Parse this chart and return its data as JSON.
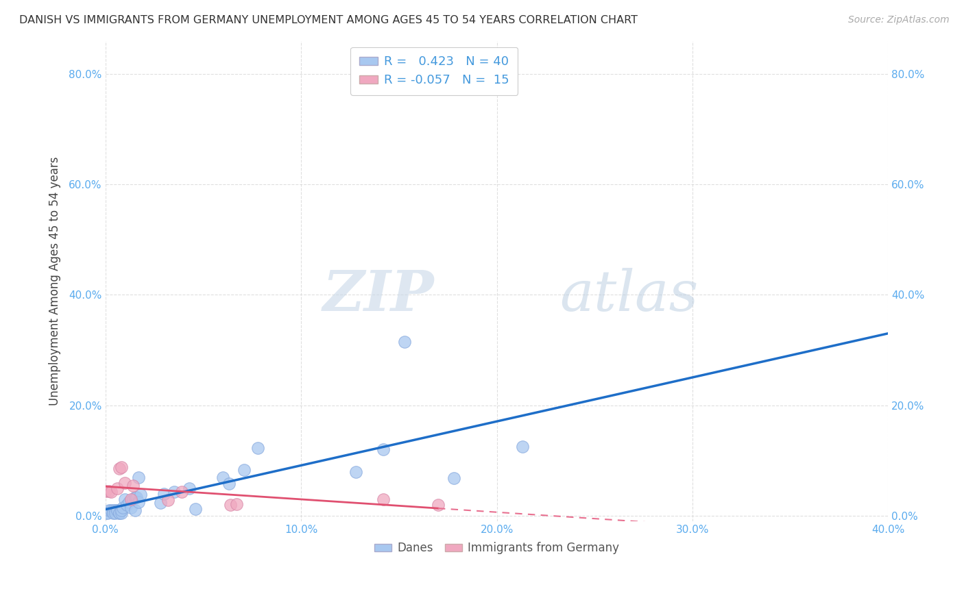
{
  "title": "DANISH VS IMMIGRANTS FROM GERMANY UNEMPLOYMENT AMONG AGES 45 TO 54 YEARS CORRELATION CHART",
  "source": "Source: ZipAtlas.com",
  "ylabel": "Unemployment Among Ages 45 to 54 years",
  "xlim": [
    0.0,
    0.4
  ],
  "ylim": [
    -0.01,
    0.86
  ],
  "xticks": [
    0.0,
    0.1,
    0.2,
    0.3,
    0.4
  ],
  "yticks": [
    0.0,
    0.2,
    0.4,
    0.6,
    0.8
  ],
  "xtick_labels": [
    "0.0%",
    "10.0%",
    "20.0%",
    "30.0%",
    "40.0%"
  ],
  "ytick_labels": [
    "0.0%",
    "20.0%",
    "40.0%",
    "60.0%",
    "80.0%"
  ],
  "danes_color": "#A8C8F0",
  "immigrants_color": "#F0A8C0",
  "danes_R": 0.423,
  "danes_N": 40,
  "immigrants_R": -0.057,
  "immigrants_N": 15,
  "danes_x": [
    0.0,
    0.001,
    0.002,
    0.003,
    0.004,
    0.004,
    0.005,
    0.005,
    0.006,
    0.006,
    0.007,
    0.007,
    0.008,
    0.008,
    0.009,
    0.01,
    0.011,
    0.012,
    0.013,
    0.014,
    0.015,
    0.015,
    0.016,
    0.017,
    0.017,
    0.018,
    0.028,
    0.03,
    0.035,
    0.043,
    0.046,
    0.06,
    0.063,
    0.071,
    0.078,
    0.128,
    0.142,
    0.153,
    0.178,
    0.213
  ],
  "danes_y": [
    0.005,
    0.005,
    0.01,
    0.01,
    0.01,
    0.005,
    0.01,
    0.005,
    0.01,
    0.01,
    0.005,
    0.005,
    0.005,
    0.01,
    0.015,
    0.03,
    0.02,
    0.025,
    0.015,
    0.03,
    0.033,
    0.01,
    0.033,
    0.07,
    0.025,
    0.038,
    0.023,
    0.04,
    0.043,
    0.05,
    0.013,
    0.07,
    0.058,
    0.083,
    0.123,
    0.08,
    0.12,
    0.315,
    0.068,
    0.125
  ],
  "immigrants_x": [
    0.0,
    0.002,
    0.003,
    0.006,
    0.007,
    0.008,
    0.01,
    0.013,
    0.014,
    0.032,
    0.039,
    0.064,
    0.067,
    0.142,
    0.17
  ],
  "immigrants_y": [
    0.045,
    0.045,
    0.043,
    0.05,
    0.085,
    0.088,
    0.06,
    0.03,
    0.055,
    0.028,
    0.043,
    0.02,
    0.021,
    0.03,
    0.02
  ],
  "danes_line_color": "#1E6EC8",
  "immigrants_line_solid_color": "#E05070",
  "immigrants_line_dashed_color": "#E87090",
  "watermark_zip": "ZIP",
  "watermark_atlas": "atlas",
  "background_color": "#FFFFFF",
  "grid_color": "#D8D8D8",
  "tick_color": "#5AABEE",
  "ylabel_color": "#444444",
  "title_color": "#333333",
  "source_color": "#AAAAAA",
  "legend_text_color": "#4499DD"
}
